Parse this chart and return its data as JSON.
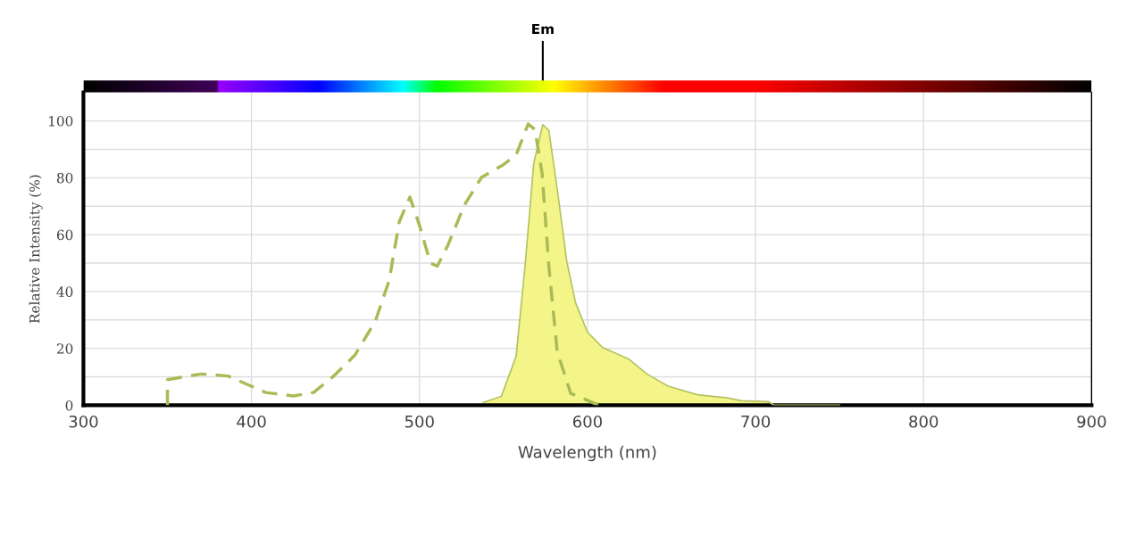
{
  "chart_data": {
    "type": "line",
    "xlabel": "Wavelength (nm)",
    "ylabel": "Relative Intensity (%)",
    "xlim": [
      300,
      900
    ],
    "xticks": [
      300,
      400,
      500,
      600,
      700,
      800,
      900
    ],
    "ylim": [
      0,
      110
    ],
    "yticks": [
      0,
      {
        "value": 10,
        "label": null
      },
      20,
      {
        "value": 30,
        "label": null
      },
      40,
      {
        "value": 50,
        "label": null
      },
      60,
      {
        "value": 70,
        "label": null
      },
      80,
      {
        "value": 90,
        "label": null
      },
      100
    ],
    "grid": true,
    "legend": false,
    "marker": "none",
    "annotations": [
      "Em"
    ],
    "series": [
      {
        "line_style": "dashed",
        "color": "#a8bb55",
        "x": [
          350,
          350,
          370,
          386,
          398,
          408.5,
          425,
          437,
          449,
          461.5,
          473.7,
          482,
          488,
          494.3,
          500,
          506.5,
          510.6,
          516.7,
          526.8,
          537,
          549.4,
          557.5,
          564.7,
          568.7,
          573,
          577,
          582,
          590,
          604.5,
          610
        ],
        "values": [
          0,
          9,
          11,
          10.3,
          7.2,
          4.5,
          3.3,
          4.5,
          10.3,
          17.6,
          29.5,
          44,
          64.6,
          73.2,
          63.3,
          50,
          48.9,
          56,
          70.5,
          80.2,
          84.4,
          88,
          98.9,
          97,
          81.5,
          48.9,
          18.8,
          4.2,
          0.6,
          0
        ]
      },
      {
        "type": "area",
        "color": "#f4f589",
        "x": [
          538,
          548.7,
          557.5,
          562.8,
          568,
          573.4,
          577,
          582.3,
          587.6,
          592.9,
          600,
          608.8,
          624.7,
          635.4,
          647.7,
          665.4,
          683,
          691.8,
          707.6,
          711,
          750
        ],
        "values": [
          1,
          3.1,
          17.2,
          48.6,
          85,
          98.7,
          96.6,
          74.7,
          50.8,
          36,
          25.7,
          20.4,
          16.2,
          11,
          6.8,
          3.7,
          2.6,
          1.6,
          1.3,
          0,
          0
        ]
      }
    ]
  }
}
